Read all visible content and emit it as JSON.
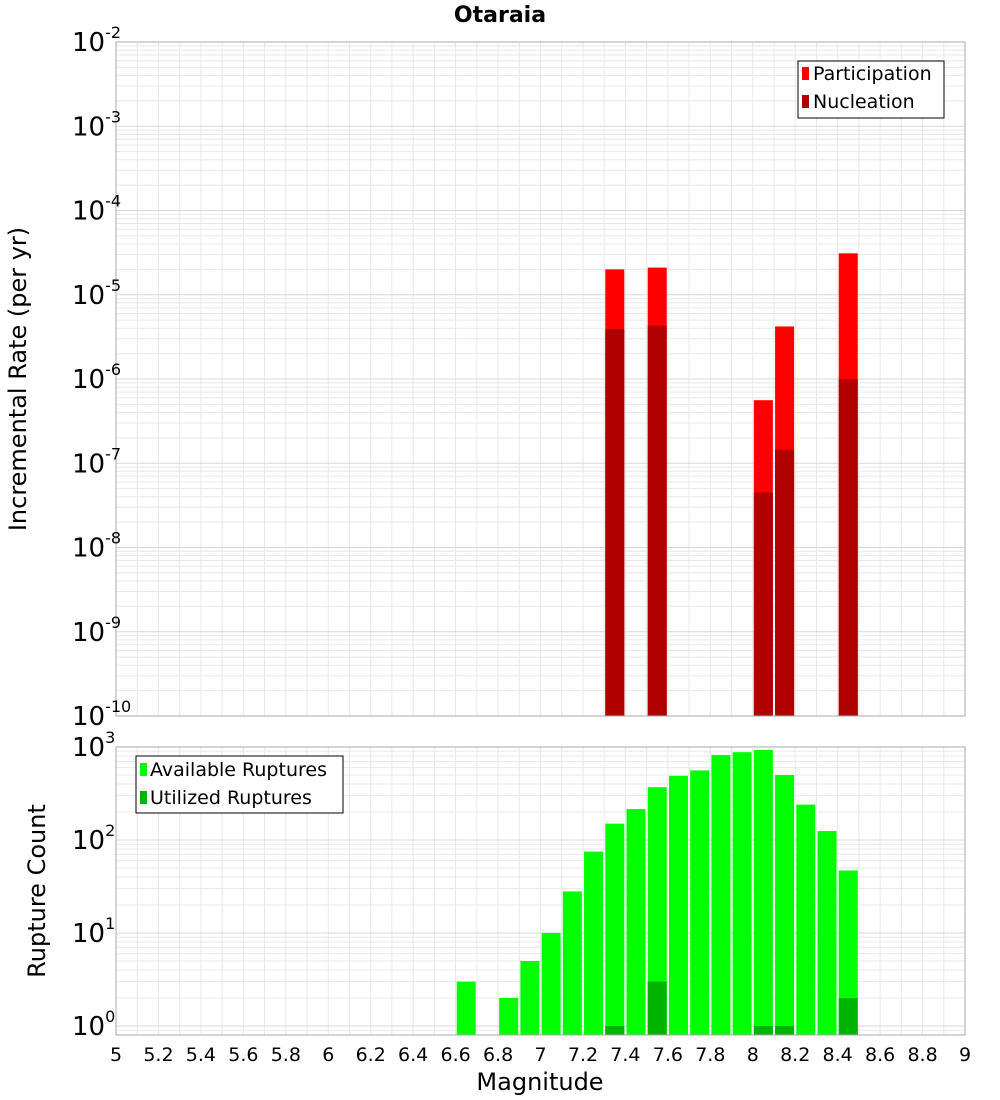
{
  "colors": {
    "participation": "#ff0000",
    "nucleation": "#b00000",
    "available": "#00ff00",
    "utilized": "#00b400",
    "grid": "#e8e8e8",
    "axis": "#aaaaaa"
  },
  "chart_data": [
    {
      "type": "bar",
      "title": "Otaraia",
      "ylabel": "Incremental Rate (per yr)",
      "xlabel": "",
      "yscale": "log",
      "ylim": [
        1e-10,
        0.01
      ],
      "xlim": [
        5,
        9
      ],
      "y_tick_labels": [
        {
          "base": "10",
          "exp": "-10",
          "value": 1e-10
        },
        {
          "base": "10",
          "exp": "-9",
          "value": 1e-09
        },
        {
          "base": "10",
          "exp": "-8",
          "value": 1e-08
        },
        {
          "base": "10",
          "exp": "-7",
          "value": 1e-07
        },
        {
          "base": "10",
          "exp": "-6",
          "value": 1e-06
        },
        {
          "base": "10",
          "exp": "-5",
          "value": 1e-05
        },
        {
          "base": "10",
          "exp": "-4",
          "value": 0.0001
        },
        {
          "base": "10",
          "exp": "-3",
          "value": 0.001
        },
        {
          "base": "10",
          "exp": "-2",
          "value": 0.01
        }
      ],
      "legend": {
        "placement": "top-right",
        "entries": [
          "Participation",
          "Nucleation"
        ]
      },
      "grid": true,
      "series": [
        {
          "name": "Participation",
          "x": [
            7.35,
            7.55,
            8.05,
            8.15,
            8.45
          ],
          "values": [
            2e-05,
            2.1e-05,
            5.6e-07,
            4.2e-06,
            3.1e-05
          ]
        },
        {
          "name": "Nucleation",
          "x": [
            7.35,
            7.55,
            8.05,
            8.15,
            8.45
          ],
          "values": [
            3.9e-06,
            4.3e-06,
            4.5e-08,
            1.45e-07,
            1e-06
          ]
        }
      ]
    },
    {
      "type": "bar",
      "title": "",
      "ylabel": "Rupture Count",
      "xlabel": "Magnitude",
      "yscale": "log",
      "ylim": [
        0.8,
        1000
      ],
      "xlim": [
        5,
        9
      ],
      "x_ticks": [
        "5",
        "5.2",
        "5.4",
        "5.6",
        "5.8",
        "6",
        "6.2",
        "6.4",
        "6.6",
        "6.8",
        "7",
        "7.2",
        "7.4",
        "7.6",
        "7.8",
        "8",
        "8.2",
        "8.4",
        "8.6",
        "8.8",
        "9"
      ],
      "y_tick_labels": [
        {
          "base": "10",
          "exp": "0",
          "value": 1
        },
        {
          "base": "10",
          "exp": "1",
          "value": 10
        },
        {
          "base": "10",
          "exp": "2",
          "value": 100
        },
        {
          "base": "10",
          "exp": "3",
          "value": 1000
        }
      ],
      "legend": {
        "placement": "top-left",
        "entries": [
          "Available Ruptures",
          "Utilized Ruptures"
        ]
      },
      "grid": true,
      "series": [
        {
          "name": "Available Ruptures",
          "x": [
            6.65,
            6.85,
            6.95,
            7.05,
            7.15,
            7.25,
            7.35,
            7.45,
            7.55,
            7.65,
            7.75,
            7.85,
            7.95,
            8.05,
            8.15,
            8.25,
            8.35,
            8.45
          ],
          "values": [
            3,
            2,
            5,
            10,
            28,
            75,
            150,
            215,
            370,
            490,
            560,
            820,
            880,
            930,
            500,
            240,
            125,
            47
          ]
        },
        {
          "name": "Utilized Ruptures",
          "x": [
            7.35,
            7.55,
            8.05,
            8.15,
            8.45
          ],
          "values": [
            1,
            3,
            1,
            1,
            2
          ]
        }
      ]
    }
  ]
}
